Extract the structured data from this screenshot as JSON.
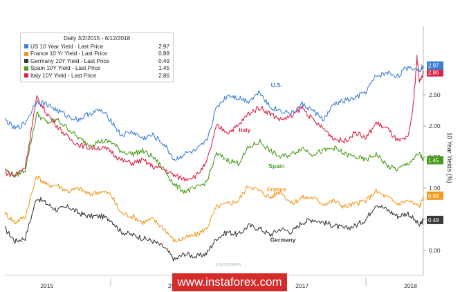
{
  "chart_data": {
    "type": "line",
    "legend": {
      "title": "Daily 3/2/2015 - 6/12/2018",
      "placement": "top-left"
    },
    "ylabel": "10 Year Yields (%)",
    "ylim": [
      -0.4,
      3.6
    ],
    "y_ticks": [
      "0.00",
      "0.50",
      "1.00",
      "1.50",
      "2.00",
      "2.50"
    ],
    "x_ticks": [
      "2015",
      "2016",
      "2017",
      "2018"
    ],
    "x_tick_years": [
      2015.5,
      2016.5,
      2017.5,
      2018.35
    ],
    "x_range": [
      2015.17,
      2018.45
    ],
    "grid": false,
    "colors": {
      "us": "#3a7fd6",
      "france": "#f29a1f",
      "germany": "#3a3a3a",
      "spain": "#4a9a1c",
      "italy": "#dc2446"
    },
    "series": [
      {
        "key": "us",
        "name": "US 10 Year Yield - Last Price",
        "last": "2.97",
        "end_label": "U.S.",
        "x": [
          2015.17,
          2015.25,
          2015.33,
          2015.42,
          2015.5,
          2015.58,
          2015.67,
          2015.75,
          2015.83,
          2015.92,
          2016.0,
          2016.08,
          2016.17,
          2016.25,
          2016.33,
          2016.42,
          2016.5,
          2016.58,
          2016.67,
          2016.75,
          2016.83,
          2016.92,
          2017.0,
          2017.08,
          2017.17,
          2017.25,
          2017.33,
          2017.42,
          2017.5,
          2017.58,
          2017.67,
          2017.75,
          2017.83,
          2017.92,
          2018.0,
          2018.08,
          2018.17,
          2018.25,
          2018.33,
          2018.42,
          2018.45
        ],
        "y": [
          2.1,
          1.95,
          2.05,
          2.4,
          2.35,
          2.25,
          2.15,
          2.1,
          2.2,
          2.25,
          2.1,
          1.85,
          1.9,
          1.8,
          1.85,
          1.7,
          1.45,
          1.55,
          1.6,
          1.75,
          2.3,
          2.5,
          2.45,
          2.4,
          2.55,
          2.3,
          2.25,
          2.2,
          2.35,
          2.25,
          2.1,
          2.35,
          2.4,
          2.45,
          2.55,
          2.8,
          2.85,
          2.8,
          2.95,
          2.9,
          2.97
        ]
      },
      {
        "key": "france",
        "name": "France 10 Yr Yield - Last Price",
        "last": "0.88",
        "end_label": "France",
        "x": [
          2015.17,
          2015.25,
          2015.33,
          2015.42,
          2015.5,
          2015.58,
          2015.67,
          2015.75,
          2015.83,
          2015.92,
          2016.0,
          2016.08,
          2016.17,
          2016.25,
          2016.33,
          2016.42,
          2016.5,
          2016.58,
          2016.67,
          2016.75,
          2016.83,
          2016.92,
          2017.0,
          2017.08,
          2017.17,
          2017.25,
          2017.33,
          2017.42,
          2017.5,
          2017.58,
          2017.67,
          2017.75,
          2017.83,
          2017.92,
          2018.0,
          2018.08,
          2018.17,
          2018.25,
          2018.33,
          2018.42,
          2018.45
        ],
        "y": [
          0.6,
          0.45,
          0.55,
          1.2,
          1.05,
          1.05,
          0.95,
          1.0,
          0.9,
          0.95,
          0.9,
          0.6,
          0.55,
          0.45,
          0.5,
          0.35,
          0.15,
          0.2,
          0.25,
          0.35,
          0.7,
          0.75,
          0.8,
          1.05,
          0.95,
          0.85,
          0.95,
          0.75,
          0.85,
          0.85,
          0.75,
          0.8,
          0.7,
          0.75,
          0.8,
          0.95,
          0.85,
          0.75,
          0.8,
          0.7,
          0.88
        ]
      },
      {
        "key": "germany",
        "name": "Germany 10Y Yield - Last Price",
        "last": "0.49",
        "end_label": "Germany",
        "x": [
          2015.17,
          2015.25,
          2015.33,
          2015.42,
          2015.5,
          2015.58,
          2015.67,
          2015.75,
          2015.83,
          2015.92,
          2016.0,
          2016.08,
          2016.17,
          2016.25,
          2016.33,
          2016.42,
          2016.5,
          2016.58,
          2016.67,
          2016.75,
          2016.83,
          2016.92,
          2017.0,
          2017.08,
          2017.17,
          2017.25,
          2017.33,
          2017.42,
          2017.5,
          2017.58,
          2017.67,
          2017.75,
          2017.83,
          2017.92,
          2018.0,
          2018.08,
          2018.17,
          2018.25,
          2018.33,
          2018.42,
          2018.45
        ],
        "y": [
          0.35,
          0.15,
          0.2,
          0.85,
          0.75,
          0.65,
          0.7,
          0.6,
          0.55,
          0.55,
          0.5,
          0.3,
          0.25,
          0.2,
          0.15,
          0.05,
          -0.15,
          -0.05,
          -0.1,
          -0.05,
          0.2,
          0.3,
          0.25,
          0.4,
          0.35,
          0.25,
          0.35,
          0.3,
          0.45,
          0.5,
          0.45,
          0.4,
          0.35,
          0.4,
          0.5,
          0.75,
          0.65,
          0.55,
          0.6,
          0.4,
          0.49
        ]
      },
      {
        "key": "spain",
        "name": "Spain 10Y Yield - Last Price",
        "last": "1.45",
        "end_label": "Spain",
        "x": [
          2015.17,
          2015.25,
          2015.33,
          2015.42,
          2015.5,
          2015.58,
          2015.67,
          2015.75,
          2015.83,
          2015.92,
          2016.0,
          2016.08,
          2016.17,
          2016.25,
          2016.33,
          2016.42,
          2016.5,
          2016.58,
          2016.67,
          2016.75,
          2016.83,
          2016.92,
          2017.0,
          2017.08,
          2017.17,
          2017.25,
          2017.33,
          2017.42,
          2017.5,
          2017.58,
          2017.67,
          2017.75,
          2017.83,
          2017.92,
          2018.0,
          2018.08,
          2018.17,
          2018.25,
          2018.33,
          2018.42,
          2018.45
        ],
        "y": [
          1.3,
          1.2,
          1.3,
          2.2,
          2.05,
          2.1,
          1.95,
          1.8,
          1.7,
          1.75,
          1.75,
          1.6,
          1.55,
          1.6,
          1.5,
          1.3,
          1.05,
          0.95,
          1.0,
          1.1,
          1.55,
          1.45,
          1.4,
          1.65,
          1.75,
          1.6,
          1.5,
          1.55,
          1.65,
          1.55,
          1.6,
          1.65,
          1.55,
          1.5,
          1.45,
          1.55,
          1.35,
          1.3,
          1.4,
          1.55,
          1.45
        ]
      },
      {
        "key": "italy",
        "name": "Italy 10Y Yield - Last Price",
        "last": "2.86",
        "end_label": "Italy",
        "x": [
          2015.17,
          2015.25,
          2015.33,
          2015.42,
          2015.5,
          2015.58,
          2015.67,
          2015.75,
          2015.83,
          2015.92,
          2016.0,
          2016.08,
          2016.17,
          2016.25,
          2016.33,
          2016.42,
          2016.5,
          2016.58,
          2016.67,
          2016.75,
          2016.83,
          2016.92,
          2017.0,
          2017.08,
          2017.17,
          2017.25,
          2017.33,
          2017.42,
          2017.5,
          2017.58,
          2017.67,
          2017.75,
          2017.83,
          2017.92,
          2018.0,
          2018.08,
          2018.17,
          2018.25,
          2018.33,
          2018.37,
          2018.4,
          2018.42,
          2018.45
        ],
        "y": [
          1.25,
          1.2,
          1.35,
          2.45,
          2.2,
          2.0,
          1.8,
          1.7,
          1.65,
          1.65,
          1.6,
          1.45,
          1.4,
          1.45,
          1.35,
          1.3,
          1.2,
          1.15,
          1.2,
          1.4,
          2.0,
          1.9,
          2.0,
          2.2,
          2.3,
          2.2,
          2.1,
          2.15,
          2.3,
          2.1,
          1.95,
          1.8,
          1.75,
          1.9,
          1.8,
          2.05,
          1.95,
          1.75,
          1.8,
          2.3,
          3.1,
          2.7,
          2.86
        ]
      }
    ]
  },
  "watermark": "www.instaforex.com",
  "small_watermark": "© BLOOMBERG"
}
